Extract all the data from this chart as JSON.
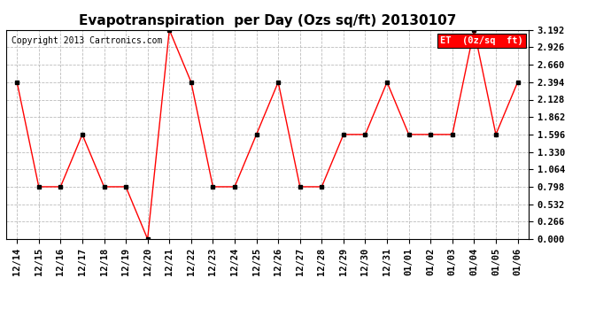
{
  "title": "Evapotranspiration  per Day (Ozs sq/ft) 20130107",
  "copyright": "Copyright 2013 Cartronics.com",
  "legend_label": "ET  (0z/sq  ft)",
  "x_labels": [
    "12/14",
    "12/15",
    "12/16",
    "12/17",
    "12/18",
    "12/19",
    "12/20",
    "12/21",
    "12/22",
    "12/23",
    "12/24",
    "12/25",
    "12/26",
    "12/27",
    "12/28",
    "12/29",
    "12/30",
    "12/31",
    "01/01",
    "01/02",
    "01/03",
    "01/04",
    "01/05",
    "01/06"
  ],
  "y_values": [
    2.394,
    0.798,
    0.798,
    1.596,
    0.798,
    0.798,
    0.0,
    3.192,
    2.394,
    0.798,
    0.798,
    1.596,
    2.394,
    0.798,
    0.798,
    1.596,
    1.596,
    2.394,
    1.596,
    1.596,
    1.596,
    3.192,
    1.596,
    2.394
  ],
  "y_ticks": [
    0.0,
    0.266,
    0.532,
    0.798,
    1.064,
    1.33,
    1.596,
    1.862,
    2.128,
    2.394,
    2.66,
    2.926,
    3.192
  ],
  "y_min": 0.0,
  "y_max": 3.192,
  "line_color": "red",
  "marker_color": "black",
  "marker_style": "s",
  "marker_size": 3,
  "background_color": "white",
  "grid_color": "#bbbbbb",
  "legend_bg": "red",
  "legend_text_color": "white",
  "title_fontsize": 11,
  "tick_fontsize": 7.5,
  "copyright_fontsize": 7
}
